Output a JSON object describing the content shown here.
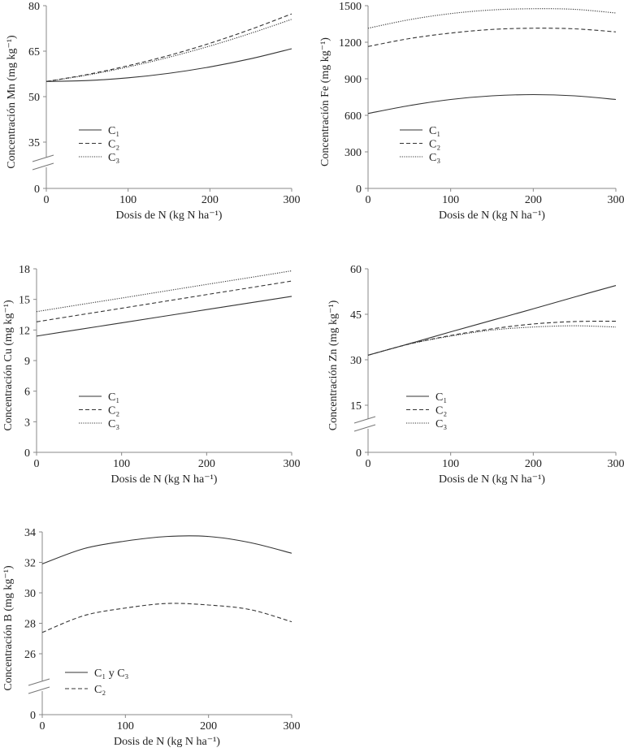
{
  "chart_data": [
    {
      "type": "line",
      "id": "mn",
      "ylabel": "Concentración Mn (mg kg⁻¹)",
      "xlabel": "Dosis de N (kg N ha⁻¹)",
      "x": [
        0,
        50,
        100,
        150,
        200,
        250,
        300
      ],
      "xticks": [
        0,
        100,
        200,
        300
      ],
      "yticks": [
        0,
        35,
        50,
        65,
        80
      ],
      "ylim": [
        0,
        80
      ],
      "axis_break": true,
      "series": [
        {
          "name": "C₁",
          "style": "solid",
          "values": [
            55,
            55.3,
            56.2,
            57.7,
            59.8,
            62.5,
            65.8
          ]
        },
        {
          "name": "C₂",
          "style": "dashed",
          "values": [
            55,
            57.3,
            60.2,
            63.6,
            67.6,
            72.2,
            77.3
          ]
        },
        {
          "name": "C₃",
          "style": "dotted",
          "values": [
            55,
            57.1,
            59.8,
            63.0,
            66.7,
            70.9,
            75.5
          ]
        }
      ]
    },
    {
      "type": "line",
      "id": "fe",
      "ylabel": "Concentración Fe (mg kg⁻¹)",
      "xlabel": "Dosis de N (kg N ha⁻¹)",
      "x": [
        0,
        50,
        100,
        150,
        200,
        250,
        300
      ],
      "xticks": [
        0,
        100,
        200,
        300
      ],
      "yticks": [
        0,
        300,
        600,
        900,
        1200,
        1500
      ],
      "ylim": [
        0,
        1500
      ],
      "axis_break": false,
      "series": [
        {
          "name": "C₁",
          "style": "solid",
          "values": [
            615,
            680,
            730,
            760,
            770,
            760,
            730
          ]
        },
        {
          "name": "C₂",
          "style": "dashed",
          "values": [
            1165,
            1230,
            1275,
            1305,
            1315,
            1310,
            1285
          ]
        },
        {
          "name": "C₃",
          "style": "dotted",
          "values": [
            1315,
            1385,
            1435,
            1465,
            1475,
            1470,
            1440
          ]
        }
      ]
    },
    {
      "type": "line",
      "id": "cu",
      "ylabel": "Concentración Cu (mg kg⁻¹)",
      "xlabel": "Dosis de N (kg N ha⁻¹)",
      "x": [
        0,
        50,
        100,
        150,
        200,
        250,
        300
      ],
      "xticks": [
        0,
        100,
        200,
        300
      ],
      "yticks": [
        0,
        3,
        6,
        9,
        12,
        15,
        18
      ],
      "ylim": [
        0,
        18
      ],
      "axis_break": false,
      "series": [
        {
          "name": "C₁",
          "style": "solid",
          "values": [
            11.4,
            12.05,
            12.7,
            13.35,
            14.0,
            14.65,
            15.3
          ]
        },
        {
          "name": "C₂",
          "style": "dashed",
          "values": [
            12.8,
            13.47,
            14.13,
            14.8,
            15.47,
            16.13,
            16.8
          ]
        },
        {
          "name": "C₃",
          "style": "dotted",
          "values": [
            13.8,
            14.47,
            15.13,
            15.8,
            16.47,
            17.13,
            17.8
          ]
        }
      ]
    },
    {
      "type": "line",
      "id": "zn",
      "ylabel": "Concentración Zn (mg kg⁻¹)",
      "xlabel": "Dosis de N (kg N ha⁻¹)",
      "x": [
        0,
        50,
        100,
        150,
        200,
        250,
        300
      ],
      "xticks": [
        0,
        100,
        200,
        300
      ],
      "yticks": [
        0,
        15,
        30,
        45,
        60
      ],
      "ylim": [
        0,
        60
      ],
      "axis_break": true,
      "series": [
        {
          "name": "C₁",
          "style": "solid",
          "values": [
            31.5,
            35.3,
            39.2,
            43.0,
            46.8,
            50.7,
            54.5
          ]
        },
        {
          "name": "C₂",
          "style": "dashed",
          "values": [
            31.5,
            35.2,
            38.0,
            40.2,
            41.8,
            42.6,
            42.7
          ]
        },
        {
          "name": "C₃",
          "style": "dotted",
          "values": [
            31.5,
            35.2,
            37.8,
            39.8,
            40.8,
            41.2,
            40.8
          ]
        }
      ]
    },
    {
      "type": "line",
      "id": "b",
      "ylabel": "Concentración B (mg kg⁻¹)",
      "xlabel": "Dosis de N (kg N ha⁻¹)",
      "x": [
        0,
        50,
        100,
        150,
        200,
        250,
        300
      ],
      "xticks": [
        0,
        100,
        200,
        300
      ],
      "yticks": [
        0,
        26,
        28,
        30,
        32,
        34
      ],
      "ylim": [
        0,
        34
      ],
      "axis_break": true,
      "series": [
        {
          "name": "C₁ y C₃",
          "style": "solid",
          "values": [
            31.9,
            32.9,
            33.4,
            33.7,
            33.7,
            33.3,
            32.6
          ]
        },
        {
          "name": "C₂",
          "style": "dashed",
          "values": [
            27.4,
            28.5,
            29.0,
            29.3,
            29.2,
            28.9,
            28.1
          ]
        }
      ]
    }
  ]
}
